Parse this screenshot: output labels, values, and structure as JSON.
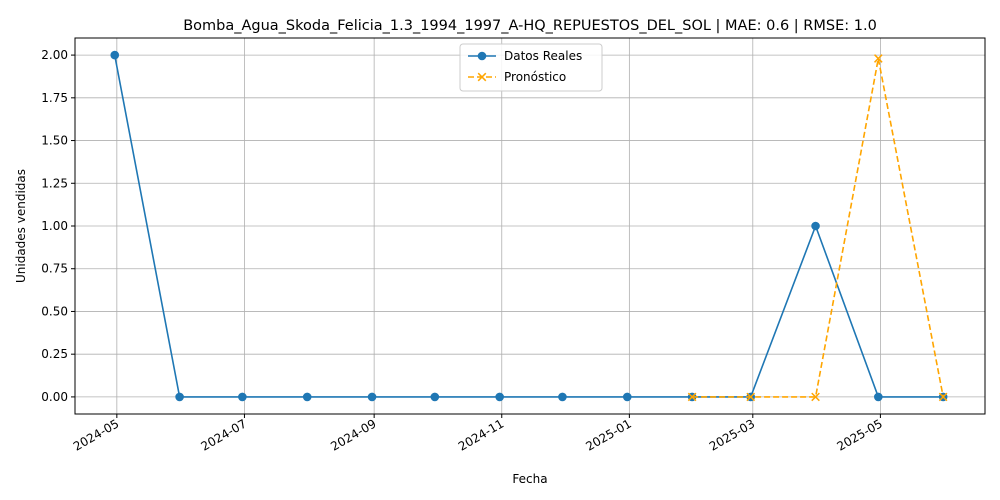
{
  "chart_data": {
    "type": "line",
    "title": "Bomba_Agua_Skoda_Felicia_1.3_1994_1997_A-HQ_REPUESTOS_DEL_SOL | MAE: 0.6 | RMSE: 1.0",
    "xlabel": "Fecha",
    "ylabel": "Unidades vendidas",
    "ylim": [
      -0.1,
      2.1
    ],
    "xlim": [
      "2024-04-11",
      "2025-06-20"
    ],
    "grid": true,
    "legend_position": "top-center",
    "x_ticks": [
      "2024-05",
      "2024-07",
      "2024-09",
      "2024-11",
      "2025-01",
      "2025-03",
      "2025-05"
    ],
    "y_ticks": [
      "0.00",
      "0.25",
      "0.50",
      "0.75",
      "1.00",
      "1.25",
      "1.50",
      "1.75",
      "2.00"
    ],
    "series": [
      {
        "name": "Datos Reales",
        "color": "#1f77b4",
        "marker": "circle",
        "linestyle": "solid",
        "x": [
          "2024-04-30",
          "2024-05-31",
          "2024-06-30",
          "2024-07-31",
          "2024-08-31",
          "2024-09-30",
          "2024-10-31",
          "2024-11-30",
          "2024-12-31",
          "2025-01-31",
          "2025-02-28",
          "2025-03-31",
          "2025-04-30",
          "2025-05-31"
        ],
        "values": [
          2,
          0,
          0,
          0,
          0,
          0,
          0,
          0,
          0,
          0,
          0,
          1,
          0,
          0
        ]
      },
      {
        "name": "Pronóstico",
        "color": "#ffa500",
        "marker": "x",
        "linestyle": "dashed",
        "x": [
          "2025-01-31",
          "2025-02-28",
          "2025-03-31",
          "2025-04-30",
          "2025-05-31"
        ],
        "values": [
          0,
          0,
          0,
          1.98,
          0
        ]
      }
    ]
  }
}
